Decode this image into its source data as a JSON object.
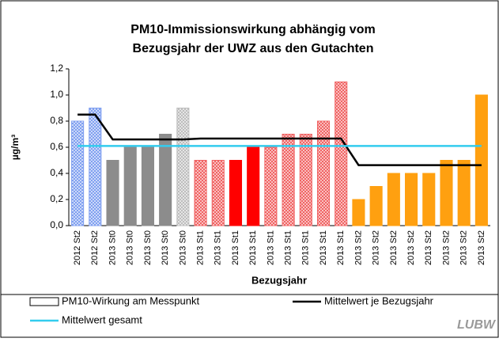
{
  "chart_data": {
    "type": "bar",
    "title": [
      "PM10-Immissionswirkung abhängig vom",
      "Bezugsjahr der UWZ aus den Gutachten"
    ],
    "y_label": "µg/m³",
    "x_label": "Bezugsjahr",
    "categories": [
      "2012 St2",
      "2012 St2",
      "2013 St0",
      "2013 St0",
      "2013 St0",
      "2013 St0",
      "2013 St0",
      "2013 St1",
      "2013 St1",
      "2013 St1",
      "2013 St1",
      "2013 St1",
      "2013 St1",
      "2013 St1",
      "2013 St1",
      "2013 St1",
      "2013 St2",
      "2013 St2",
      "2013 St2",
      "2013 St2",
      "2013 St2",
      "2013 St2",
      "2013 St2",
      "2013 St2"
    ],
    "ylim": [
      0,
      1.2
    ],
    "yticks": [
      {
        "value": 0,
        "label": "0,0"
      },
      {
        "value": 0.2,
        "label": "0,2"
      },
      {
        "value": 0.4,
        "label": "0,4"
      },
      {
        "value": 0.6,
        "label": "0,6"
      },
      {
        "value": 0.8,
        "label": "0,8"
      },
      {
        "value": 1.0,
        "label": "1,0"
      },
      {
        "value": 1.2,
        "label": "1,2"
      }
    ],
    "grid": false,
    "series": [
      {
        "name": "PM10-Wirkung am Messpunkt",
        "type": "bar",
        "values": [
          0.8,
          0.9,
          0.5,
          0.6,
          0.6,
          0.7,
          0.9,
          0.5,
          0.5,
          0.5,
          0.6,
          0.6,
          0.7,
          0.7,
          0.8,
          1.1,
          0.2,
          0.3,
          0.4,
          0.4,
          0.4,
          0.5,
          0.5,
          1.0
        ],
        "colors": [
          "#7f9ff0",
          "#7f9ff0",
          "#8c8c8c",
          "#8c8c8c",
          "#8c8c8c",
          "#8c8c8c",
          "#bdbdbd",
          "#f06262",
          "#f06262",
          "#ff0000",
          "#ff0000",
          "#f06262",
          "#f06262",
          "#f06262",
          "#f06262",
          "#f06262",
          "#ffa010",
          "#ffa010",
          "#ffa010",
          "#ffa010",
          "#ffa010",
          "#ffa010",
          "#ffa010",
          "#ffa010"
        ],
        "patterns": [
          "hatch",
          "hatch",
          "solid",
          "solid",
          "solid",
          "solid",
          "hatch",
          "hatch",
          "hatch",
          "solid",
          "solid",
          "hatch",
          "hatch",
          "hatch",
          "hatch",
          "hatch",
          "solid",
          "solid",
          "solid",
          "solid",
          "solid",
          "solid",
          "solid",
          "solid"
        ]
      },
      {
        "name": "Mittelwert je Bezugsjahr",
        "type": "line",
        "color": "#000000",
        "values": [
          0.85,
          0.85,
          0.66,
          0.66,
          0.66,
          0.66,
          0.66,
          0.667,
          0.667,
          0.667,
          0.667,
          0.667,
          0.667,
          0.667,
          0.667,
          0.667,
          0.463,
          0.463,
          0.463,
          0.463,
          0.463,
          0.463,
          0.463,
          0.463
        ]
      },
      {
        "name": "Mittelwert gesamt",
        "type": "line",
        "color": "#33ccee",
        "values": [
          0.61,
          0.61,
          0.61,
          0.61,
          0.61,
          0.61,
          0.61,
          0.61,
          0.61,
          0.61,
          0.61,
          0.61,
          0.61,
          0.61,
          0.61,
          0.61,
          0.61,
          0.61,
          0.61,
          0.61,
          0.61,
          0.61,
          0.61,
          0.61
        ]
      }
    ],
    "logo": "LUBW"
  }
}
